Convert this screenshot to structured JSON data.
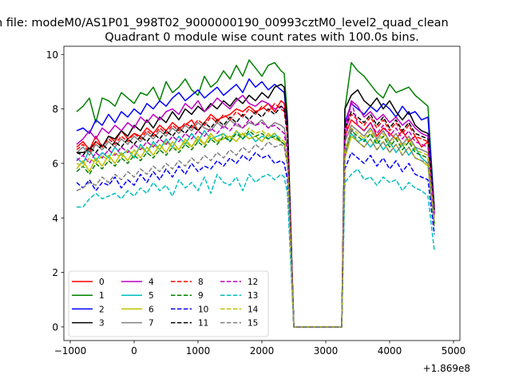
{
  "chart_data": {
    "type": "line",
    "suptitle": "n file: modeM0/AS1P01_998T02_9000000190_00993cztM0_level2_quad_clean",
    "title": "Quadrant 0 module wise count rates with 100.0s bins.",
    "xlabel": "",
    "ylabel": "",
    "xlim": [
      -1100,
      5100
    ],
    "ylim": [
      -0.5,
      10.3
    ],
    "x_offset_label": "+1.869e8",
    "x_ticks": [
      -1000,
      0,
      1000,
      2000,
      3000,
      4000,
      5000
    ],
    "x_tick_labels": [
      "−1000",
      "0",
      "1000",
      "2000",
      "3000",
      "4000",
      "5000"
    ],
    "y_ticks": [
      0,
      2,
      4,
      6,
      8,
      10
    ],
    "y_tick_labels": [
      "0",
      "2",
      "4",
      "6",
      "8",
      "10"
    ],
    "legend_position": "lower-left",
    "x": [
      -900,
      -800,
      -700,
      -600,
      -500,
      -400,
      -300,
      -200,
      -100,
      0,
      100,
      200,
      300,
      400,
      500,
      600,
      700,
      800,
      900,
      1000,
      1100,
      1200,
      1300,
      1400,
      1500,
      1600,
      1700,
      1800,
      1900,
      2000,
      2100,
      2200,
      2300,
      2350,
      2400,
      2500,
      2600,
      2700,
      2800,
      2900,
      3000,
      3100,
      3200,
      3250,
      3300,
      3400,
      3500,
      3600,
      3700,
      3800,
      3900,
      4000,
      4100,
      4200,
      4300,
      4400,
      4500,
      4600,
      4700
    ],
    "series": [
      {
        "name": "0",
        "color": "#ff0000",
        "dash": "solid",
        "values": [
          6.6,
          6.8,
          6.5,
          7.0,
          6.6,
          7.0,
          6.8,
          7.2,
          6.9,
          7.1,
          7.0,
          7.3,
          7.1,
          7.4,
          7.2,
          7.5,
          7.3,
          7.4,
          7.6,
          7.2,
          7.5,
          7.8,
          7.6,
          7.7,
          7.8,
          8.0,
          7.9,
          8.1,
          7.9,
          8.0,
          8.2,
          7.9,
          8.3,
          8.2,
          7.1,
          0,
          0,
          0,
          0,
          0,
          0,
          0,
          0,
          0,
          7.0,
          7.6,
          7.4,
          7.2,
          7.5,
          7.0,
          7.3,
          7.1,
          6.9,
          7.2,
          6.8,
          7.0,
          6.6,
          6.8,
          4.4
        ]
      },
      {
        "name": "1",
        "color": "#008000",
        "dash": "solid",
        "values": [
          7.9,
          8.1,
          8.4,
          7.5,
          8.4,
          8.3,
          8.1,
          8.6,
          8.4,
          8.2,
          8.6,
          8.5,
          8.8,
          8.3,
          9.0,
          8.6,
          8.8,
          9.1,
          8.7,
          8.5,
          9.2,
          8.8,
          9.0,
          9.4,
          9.1,
          9.6,
          9.2,
          9.8,
          9.5,
          9.2,
          9.6,
          9.7,
          9.4,
          9.3,
          7.7,
          0,
          0,
          0,
          0,
          0,
          0,
          0,
          0,
          0,
          8.0,
          9.7,
          9.4,
          9.2,
          8.9,
          8.6,
          8.4,
          8.9,
          8.6,
          8.7,
          8.8,
          8.5,
          8.3,
          8.1,
          4.3
        ]
      },
      {
        "name": "2",
        "color": "#0000ff",
        "dash": "solid",
        "values": [
          7.2,
          7.3,
          7.1,
          7.6,
          7.4,
          7.8,
          7.5,
          7.9,
          7.7,
          8.0,
          7.8,
          8.2,
          8.0,
          8.3,
          8.1,
          8.4,
          8.6,
          8.3,
          8.5,
          8.7,
          8.4,
          8.6,
          8.8,
          8.5,
          8.7,
          8.9,
          8.6,
          9.1,
          8.8,
          9.0,
          8.7,
          8.9,
          8.7,
          8.6,
          7.4,
          0,
          0,
          0,
          0,
          0,
          0,
          0,
          0,
          0,
          7.5,
          8.2,
          8.0,
          7.8,
          8.1,
          7.9,
          8.2,
          8.0,
          7.7,
          8.1,
          7.8,
          7.9,
          7.6,
          7.7,
          4.3
        ]
      },
      {
        "name": "3",
        "color": "#000000",
        "dash": "solid",
        "values": [
          6.4,
          6.4,
          6.5,
          6.8,
          6.6,
          7.0,
          6.9,
          7.2,
          7.0,
          7.4,
          7.2,
          7.6,
          7.3,
          7.7,
          7.5,
          7.9,
          7.6,
          8.0,
          7.8,
          8.1,
          7.9,
          8.2,
          8.0,
          8.3,
          8.1,
          8.4,
          8.2,
          8.5,
          8.3,
          8.6,
          8.4,
          8.8,
          8.9,
          8.8,
          7.5,
          0,
          0,
          0,
          0,
          0,
          0,
          0,
          0,
          0,
          8.0,
          8.5,
          8.7,
          8.3,
          8.1,
          8.4,
          8.0,
          8.3,
          7.9,
          7.6,
          7.9,
          7.4,
          7.2,
          7.1,
          4.2
        ]
      },
      {
        "name": "4",
        "color": "#bf00bf",
        "dash": "solid",
        "values": [
          6.7,
          6.9,
          7.2,
          6.9,
          7.3,
          7.1,
          7.4,
          7.2,
          7.5,
          7.3,
          7.7,
          7.5,
          7.8,
          7.6,
          7.9,
          8.0,
          7.8,
          8.2,
          8.0,
          8.3,
          7.9,
          8.1,
          8.4,
          8.2,
          8.0,
          8.3,
          8.5,
          8.2,
          8.1,
          8.3,
          8.2,
          8.0,
          8.1,
          8.0,
          7.2,
          0,
          0,
          0,
          0,
          0,
          0,
          0,
          0,
          0,
          7.3,
          8.3,
          8.1,
          7.7,
          7.9,
          7.6,
          7.8,
          7.5,
          7.7,
          7.4,
          7.6,
          7.3,
          7.1,
          7.0,
          4.1
        ]
      },
      {
        "name": "5",
        "color": "#00bfbf",
        "dash": "solid",
        "values": [
          6.2,
          6.0,
          6.5,
          6.1,
          6.4,
          6.2,
          6.6,
          6.3,
          6.5,
          6.2,
          6.7,
          6.4,
          6.8,
          6.5,
          6.9,
          6.6,
          7.0,
          6.7,
          7.1,
          6.8,
          7.2,
          6.9,
          7.0,
          7.1,
          6.8,
          7.2,
          6.9,
          7.1,
          6.8,
          7.0,
          6.9,
          7.1,
          6.8,
          6.7,
          6.1,
          0,
          0,
          0,
          0,
          0,
          0,
          0,
          0,
          0,
          6.3,
          7.1,
          6.8,
          6.9,
          6.6,
          6.9,
          6.5,
          6.8,
          6.4,
          6.7,
          6.3,
          6.6,
          6.2,
          6.0,
          3.8
        ]
      },
      {
        "name": "6",
        "color": "#bfbf00",
        "dash": "solid",
        "values": [
          5.8,
          6.1,
          5.7,
          6.2,
          5.9,
          6.3,
          6.0,
          6.4,
          6.1,
          6.5,
          6.2,
          6.6,
          6.3,
          6.7,
          6.4,
          6.8,
          6.5,
          6.9,
          6.6,
          7.0,
          6.7,
          7.1,
          6.8,
          6.9,
          7.0,
          6.8,
          7.1,
          6.9,
          7.0,
          6.8,
          7.1,
          6.9,
          6.8,
          6.7,
          6.0,
          0,
          0,
          0,
          0,
          0,
          0,
          0,
          0,
          0,
          6.2,
          7.0,
          6.8,
          6.6,
          6.9,
          6.5,
          6.8,
          6.4,
          6.7,
          6.3,
          6.6,
          6.2,
          6.1,
          5.9,
          3.7
        ]
      },
      {
        "name": "7",
        "color": "#808080",
        "dash": "solid",
        "values": [
          6.4,
          6.6,
          6.3,
          6.7,
          6.5,
          6.8,
          6.6,
          6.9,
          6.7,
          7.0,
          6.8,
          7.1,
          6.9,
          7.2,
          7.0,
          7.3,
          7.1,
          7.4,
          7.2,
          7.5,
          7.3,
          7.2,
          7.5,
          7.3,
          7.6,
          7.4,
          7.3,
          7.5,
          7.4,
          7.6,
          7.3,
          7.5,
          7.4,
          7.3,
          6.6,
          0,
          0,
          0,
          0,
          0,
          0,
          0,
          0,
          0,
          6.8,
          7.4,
          7.2,
          7.0,
          7.3,
          6.9,
          7.2,
          6.8,
          7.1,
          6.7,
          7.0,
          6.6,
          6.5,
          6.4,
          4.0
        ]
      },
      {
        "name": "8",
        "color": "#ff0000",
        "dash": "dashed",
        "values": [
          6.5,
          6.7,
          6.4,
          6.8,
          6.6,
          6.9,
          6.7,
          7.0,
          6.8,
          7.1,
          6.9,
          7.2,
          7.0,
          7.3,
          7.1,
          7.4,
          7.2,
          7.5,
          7.3,
          7.6,
          7.4,
          7.7,
          7.5,
          7.8,
          7.6,
          7.9,
          7.7,
          8.0,
          7.8,
          8.1,
          7.9,
          8.2,
          8.0,
          7.9,
          7.0,
          0,
          0,
          0,
          0,
          0,
          0,
          0,
          0,
          0,
          7.2,
          7.8,
          7.6,
          7.4,
          7.7,
          7.3,
          7.6,
          7.2,
          7.5,
          7.1,
          7.4,
          7.0,
          6.9,
          6.8,
          4.2
        ]
      },
      {
        "name": "9",
        "color": "#008000",
        "dash": "dashed",
        "values": [
          5.7,
          5.9,
          5.6,
          6.0,
          5.8,
          6.1,
          5.9,
          6.2,
          6.0,
          6.3,
          6.1,
          6.4,
          6.2,
          6.5,
          6.3,
          6.6,
          6.4,
          6.7,
          6.5,
          6.8,
          6.6,
          6.9,
          6.7,
          7.0,
          6.8,
          7.1,
          6.9,
          7.2,
          7.0,
          7.1,
          6.9,
          7.0,
          6.8,
          6.7,
          6.0,
          0,
          0,
          0,
          0,
          0,
          0,
          0,
          0,
          0,
          6.4,
          7.2,
          7.0,
          6.8,
          7.1,
          6.7,
          7.0,
          6.6,
          6.9,
          6.5,
          6.8,
          6.4,
          6.3,
          6.2,
          3.8
        ]
      },
      {
        "name": "10",
        "color": "#0000ff",
        "dash": "dashed",
        "values": [
          5.3,
          5.1,
          5.4,
          5.0,
          5.3,
          5.2,
          5.5,
          5.1,
          5.4,
          5.2,
          5.6,
          5.3,
          5.7,
          5.4,
          5.8,
          5.5,
          5.9,
          5.6,
          6.0,
          5.7,
          5.9,
          5.8,
          6.1,
          5.9,
          6.2,
          6.0,
          6.3,
          6.1,
          6.4,
          6.2,
          6.3,
          6.0,
          6.1,
          6.0,
          5.4,
          0,
          0,
          0,
          0,
          0,
          0,
          0,
          0,
          0,
          5.8,
          6.4,
          6.2,
          6.0,
          6.3,
          5.9,
          6.2,
          5.8,
          6.1,
          5.7,
          6.0,
          5.6,
          5.5,
          5.4,
          3.4
        ]
      },
      {
        "name": "11",
        "color": "#000000",
        "dash": "dashed",
        "values": [
          6.4,
          6.3,
          6.6,
          6.4,
          6.7,
          6.5,
          6.8,
          6.6,
          6.9,
          6.7,
          7.0,
          6.8,
          7.1,
          6.9,
          7.2,
          7.0,
          7.3,
          7.1,
          7.4,
          7.2,
          7.5,
          7.3,
          7.6,
          7.4,
          7.7,
          7.5,
          7.8,
          7.6,
          7.9,
          7.7,
          8.0,
          7.8,
          8.1,
          8.0,
          7.1,
          0,
          0,
          0,
          0,
          0,
          0,
          0,
          0,
          0,
          7.3,
          7.9,
          7.7,
          7.5,
          7.8,
          7.4,
          7.7,
          7.3,
          7.6,
          7.2,
          7.5,
          7.1,
          7.0,
          6.9,
          4.3
        ]
      },
      {
        "name": "12",
        "color": "#bf00bf",
        "dash": "dashed",
        "values": [
          6.1,
          6.3,
          6.0,
          6.4,
          6.2,
          6.5,
          6.3,
          6.6,
          6.4,
          6.7,
          6.5,
          6.8,
          6.6,
          6.9,
          6.7,
          7.0,
          6.8,
          7.1,
          6.9,
          7.2,
          7.0,
          7.3,
          7.1,
          7.4,
          7.2,
          7.5,
          7.3,
          7.6,
          7.4,
          7.5,
          7.3,
          7.4,
          7.2,
          7.1,
          6.4,
          0,
          0,
          0,
          0,
          0,
          0,
          0,
          0,
          0,
          6.8,
          8.3,
          7.4,
          7.2,
          7.5,
          7.1,
          7.4,
          7.0,
          7.3,
          6.9,
          7.2,
          6.8,
          6.7,
          6.6,
          4.1
        ]
      },
      {
        "name": "13",
        "color": "#00bfbf",
        "dash": "dashed",
        "values": [
          4.4,
          4.4,
          4.7,
          4.9,
          4.7,
          4.8,
          4.9,
          4.7,
          5.0,
          4.8,
          5.1,
          4.9,
          5.3,
          5.0,
          5.2,
          4.8,
          5.4,
          5.1,
          5.3,
          5.0,
          5.5,
          4.9,
          5.6,
          5.3,
          5.2,
          5.5,
          5.0,
          5.6,
          5.3,
          5.5,
          5.6,
          5.4,
          5.6,
          5.5,
          4.9,
          0,
          0,
          0,
          0,
          0,
          0,
          0,
          0,
          0,
          5.3,
          5.6,
          5.8,
          5.4,
          5.5,
          5.2,
          5.5,
          5.3,
          5.4,
          5.0,
          5.3,
          5.1,
          5.0,
          4.8,
          2.8
        ]
      },
      {
        "name": "14",
        "color": "#bfbf00",
        "dash": "dashed",
        "values": [
          6.0,
          5.9,
          6.2,
          6.0,
          6.3,
          6.1,
          6.4,
          6.2,
          6.5,
          6.3,
          6.6,
          6.4,
          6.7,
          6.5,
          6.8,
          6.6,
          6.5,
          6.8,
          6.6,
          6.9,
          6.7,
          7.0,
          6.8,
          7.1,
          6.9,
          7.2,
          7.0,
          7.3,
          7.1,
          7.2,
          7.0,
          7.1,
          6.9,
          6.8,
          6.1,
          0,
          0,
          0,
          0,
          0,
          0,
          0,
          0,
          0,
          6.5,
          7.3,
          7.1,
          6.9,
          7.2,
          6.8,
          7.1,
          6.7,
          7.0,
          6.6,
          6.9,
          6.5,
          6.4,
          6.3,
          3.9
        ]
      },
      {
        "name": "15",
        "color": "#808080",
        "dash": "dashed",
        "values": [
          5.0,
          5.1,
          5.3,
          5.2,
          5.5,
          5.3,
          5.6,
          5.4,
          5.7,
          5.5,
          5.8,
          5.6,
          5.9,
          5.7,
          6.0,
          5.8,
          6.1,
          5.9,
          6.2,
          6.0,
          6.3,
          6.1,
          6.4,
          6.2,
          6.5,
          6.3,
          6.6,
          6.4,
          6.7,
          6.5,
          6.8,
          6.6,
          6.7,
          6.6,
          5.9,
          0,
          0,
          0,
          0,
          0,
          0,
          0,
          0,
          0,
          6.2,
          7.3,
          6.8,
          6.6,
          6.9,
          6.5,
          6.8,
          6.4,
          6.7,
          6.3,
          6.6,
          6.2,
          6.1,
          6.0,
          3.7
        ]
      }
    ]
  }
}
